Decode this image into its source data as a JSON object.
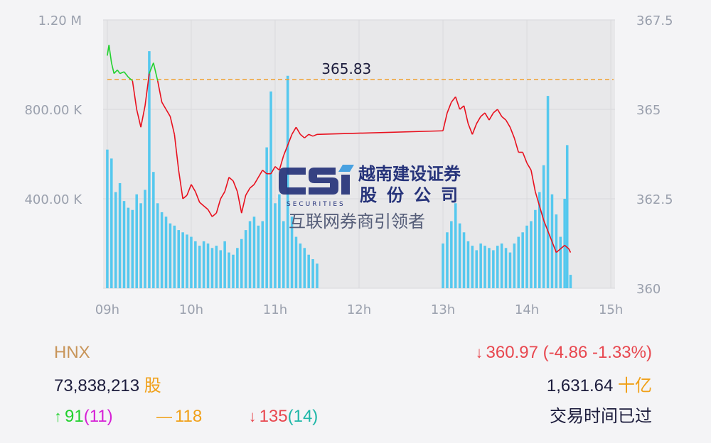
{
  "chart_data": {
    "type": "line",
    "reference_label": "365.83",
    "reference_value": 365.83,
    "y_left_ticks": [
      "1.20 M",
      "800.00 K",
      "400.00 K"
    ],
    "y_left_tick_values": [
      1200000,
      800000,
      400000
    ],
    "y_left_range": [
      0,
      1200000
    ],
    "y_right_ticks": [
      "367.5",
      "365",
      "362.5",
      "360"
    ],
    "y_right_tick_values": [
      367.5,
      365,
      362.5,
      360
    ],
    "y_right_range": [
      360,
      367.5
    ],
    "x_ticks": [
      "09h",
      "10h",
      "11h",
      "12h",
      "13h",
      "14h",
      "15h"
    ],
    "x_tick_values": [
      9,
      10,
      11,
      12,
      13,
      14,
      15
    ],
    "x_range": [
      8.95,
      15.05
    ],
    "grid": true,
    "colors": {
      "price_up": "#22d12e",
      "price_down": "#e8101e",
      "volume": "#55c8ee",
      "reference": "#f0a030"
    },
    "price_series": [
      {
        "x": 9.0,
        "y": 366.5
      },
      {
        "x": 9.02,
        "y": 366.8
      },
      {
        "x": 9.05,
        "y": 366.3
      },
      {
        "x": 9.08,
        "y": 366.0
      },
      {
        "x": 9.12,
        "y": 366.1
      },
      {
        "x": 9.15,
        "y": 366.0
      },
      {
        "x": 9.2,
        "y": 366.05
      },
      {
        "x": 9.25,
        "y": 365.9
      },
      {
        "x": 9.3,
        "y": 365.8
      },
      {
        "x": 9.35,
        "y": 365.0
      },
      {
        "x": 9.4,
        "y": 364.5
      },
      {
        "x": 9.45,
        "y": 365.1
      },
      {
        "x": 9.5,
        "y": 366.0
      },
      {
        "x": 9.55,
        "y": 366.3
      },
      {
        "x": 9.6,
        "y": 365.8
      },
      {
        "x": 9.65,
        "y": 365.2
      },
      {
        "x": 9.7,
        "y": 365.0
      },
      {
        "x": 9.75,
        "y": 364.8
      },
      {
        "x": 9.8,
        "y": 364.3
      },
      {
        "x": 9.85,
        "y": 363.3
      },
      {
        "x": 9.9,
        "y": 362.5
      },
      {
        "x": 9.95,
        "y": 362.6
      },
      {
        "x": 10.0,
        "y": 362.9
      },
      {
        "x": 10.05,
        "y": 362.7
      },
      {
        "x": 10.1,
        "y": 362.4
      },
      {
        "x": 10.15,
        "y": 362.3
      },
      {
        "x": 10.2,
        "y": 362.2
      },
      {
        "x": 10.25,
        "y": 362.0
      },
      {
        "x": 10.3,
        "y": 362.1
      },
      {
        "x": 10.35,
        "y": 362.5
      },
      {
        "x": 10.4,
        "y": 362.7
      },
      {
        "x": 10.45,
        "y": 363.1
      },
      {
        "x": 10.5,
        "y": 363.0
      },
      {
        "x": 10.55,
        "y": 362.7
      },
      {
        "x": 10.6,
        "y": 362.1
      },
      {
        "x": 10.65,
        "y": 362.6
      },
      {
        "x": 10.7,
        "y": 362.8
      },
      {
        "x": 10.75,
        "y": 362.9
      },
      {
        "x": 10.8,
        "y": 363.1
      },
      {
        "x": 10.85,
        "y": 363.3
      },
      {
        "x": 10.9,
        "y": 363.2
      },
      {
        "x": 10.95,
        "y": 363.2
      },
      {
        "x": 11.0,
        "y": 363.4
      },
      {
        "x": 11.05,
        "y": 363.3
      },
      {
        "x": 11.1,
        "y": 363.7
      },
      {
        "x": 11.15,
        "y": 364.0
      },
      {
        "x": 11.2,
        "y": 364.3
      },
      {
        "x": 11.25,
        "y": 364.5
      },
      {
        "x": 11.3,
        "y": 364.3
      },
      {
        "x": 11.35,
        "y": 364.2
      },
      {
        "x": 11.4,
        "y": 364.3
      },
      {
        "x": 11.45,
        "y": 364.25
      },
      {
        "x": 11.5,
        "y": 364.3
      },
      {
        "x": 13.0,
        "y": 364.4
      },
      {
        "x": 13.05,
        "y": 364.9
      },
      {
        "x": 13.1,
        "y": 365.2
      },
      {
        "x": 13.15,
        "y": 365.35
      },
      {
        "x": 13.2,
        "y": 365.0
      },
      {
        "x": 13.25,
        "y": 365.1
      },
      {
        "x": 13.3,
        "y": 364.6
      },
      {
        "x": 13.35,
        "y": 364.3
      },
      {
        "x": 13.4,
        "y": 364.6
      },
      {
        "x": 13.45,
        "y": 364.8
      },
      {
        "x": 13.5,
        "y": 364.9
      },
      {
        "x": 13.55,
        "y": 364.7
      },
      {
        "x": 13.6,
        "y": 364.9
      },
      {
        "x": 13.65,
        "y": 365.0
      },
      {
        "x": 13.7,
        "y": 364.8
      },
      {
        "x": 13.75,
        "y": 364.7
      },
      {
        "x": 13.8,
        "y": 364.5
      },
      {
        "x": 13.85,
        "y": 364.2
      },
      {
        "x": 13.9,
        "y": 363.8
      },
      {
        "x": 13.95,
        "y": 363.8
      },
      {
        "x": 14.0,
        "y": 363.5
      },
      {
        "x": 14.05,
        "y": 363.3
      },
      {
        "x": 14.1,
        "y": 362.7
      },
      {
        "x": 14.15,
        "y": 362.3
      },
      {
        "x": 14.2,
        "y": 361.9
      },
      {
        "x": 14.25,
        "y": 361.6
      },
      {
        "x": 14.3,
        "y": 361.3
      },
      {
        "x": 14.35,
        "y": 361.0
      },
      {
        "x": 14.4,
        "y": 361.1
      },
      {
        "x": 14.45,
        "y": 361.2
      },
      {
        "x": 14.5,
        "y": 361.1
      },
      {
        "x": 14.52,
        "y": 361.0
      }
    ],
    "volume_series": [
      {
        "x": 9.0,
        "y": 620000
      },
      {
        "x": 9.05,
        "y": 580000
      },
      {
        "x": 9.1,
        "y": 430000
      },
      {
        "x": 9.15,
        "y": 470000
      },
      {
        "x": 9.2,
        "y": 390000
      },
      {
        "x": 9.25,
        "y": 360000
      },
      {
        "x": 9.3,
        "y": 350000
      },
      {
        "x": 9.35,
        "y": 420000
      },
      {
        "x": 9.4,
        "y": 380000
      },
      {
        "x": 9.45,
        "y": 440000
      },
      {
        "x": 9.5,
        "y": 1060000
      },
      {
        "x": 9.55,
        "y": 520000
      },
      {
        "x": 9.6,
        "y": 380000
      },
      {
        "x": 9.65,
        "y": 340000
      },
      {
        "x": 9.7,
        "y": 320000
      },
      {
        "x": 9.75,
        "y": 290000
      },
      {
        "x": 9.8,
        "y": 280000
      },
      {
        "x": 9.85,
        "y": 260000
      },
      {
        "x": 9.9,
        "y": 250000
      },
      {
        "x": 9.95,
        "y": 240000
      },
      {
        "x": 10.0,
        "y": 230000
      },
      {
        "x": 10.05,
        "y": 210000
      },
      {
        "x": 10.1,
        "y": 190000
      },
      {
        "x": 10.15,
        "y": 210000
      },
      {
        "x": 10.2,
        "y": 200000
      },
      {
        "x": 10.25,
        "y": 180000
      },
      {
        "x": 10.3,
        "y": 190000
      },
      {
        "x": 10.35,
        "y": 170000
      },
      {
        "x": 10.4,
        "y": 210000
      },
      {
        "x": 10.45,
        "y": 160000
      },
      {
        "x": 10.5,
        "y": 150000
      },
      {
        "x": 10.55,
        "y": 180000
      },
      {
        "x": 10.6,
        "y": 220000
      },
      {
        "x": 10.65,
        "y": 260000
      },
      {
        "x": 10.7,
        "y": 300000
      },
      {
        "x": 10.75,
        "y": 320000
      },
      {
        "x": 10.8,
        "y": 280000
      },
      {
        "x": 10.85,
        "y": 300000
      },
      {
        "x": 10.9,
        "y": 630000
      },
      {
        "x": 10.95,
        "y": 880000
      },
      {
        "x": 11.0,
        "y": 380000
      },
      {
        "x": 11.05,
        "y": 420000
      },
      {
        "x": 11.1,
        "y": 300000
      },
      {
        "x": 11.15,
        "y": 950000
      },
      {
        "x": 11.2,
        "y": 320000
      },
      {
        "x": 11.25,
        "y": 230000
      },
      {
        "x": 11.3,
        "y": 200000
      },
      {
        "x": 11.35,
        "y": 180000
      },
      {
        "x": 11.4,
        "y": 150000
      },
      {
        "x": 11.45,
        "y": 130000
      },
      {
        "x": 11.5,
        "y": 110000
      },
      {
        "x": 13.0,
        "y": 200000
      },
      {
        "x": 13.05,
        "y": 250000
      },
      {
        "x": 13.1,
        "y": 300000
      },
      {
        "x": 13.15,
        "y": 380000
      },
      {
        "x": 13.2,
        "y": 290000
      },
      {
        "x": 13.25,
        "y": 250000
      },
      {
        "x": 13.3,
        "y": 210000
      },
      {
        "x": 13.35,
        "y": 190000
      },
      {
        "x": 13.4,
        "y": 170000
      },
      {
        "x": 13.45,
        "y": 200000
      },
      {
        "x": 13.5,
        "y": 190000
      },
      {
        "x": 13.55,
        "y": 180000
      },
      {
        "x": 13.6,
        "y": 170000
      },
      {
        "x": 13.65,
        "y": 190000
      },
      {
        "x": 13.7,
        "y": 200000
      },
      {
        "x": 13.75,
        "y": 180000
      },
      {
        "x": 13.8,
        "y": 160000
      },
      {
        "x": 13.85,
        "y": 200000
      },
      {
        "x": 13.9,
        "y": 230000
      },
      {
        "x": 13.95,
        "y": 250000
      },
      {
        "x": 14.0,
        "y": 280000
      },
      {
        "x": 14.05,
        "y": 300000
      },
      {
        "x": 14.1,
        "y": 350000
      },
      {
        "x": 14.15,
        "y": 430000
      },
      {
        "x": 14.2,
        "y": 550000
      },
      {
        "x": 14.25,
        "y": 860000
      },
      {
        "x": 14.3,
        "y": 420000
      },
      {
        "x": 14.35,
        "y": 330000
      },
      {
        "x": 14.4,
        "y": 230000
      },
      {
        "x": 14.45,
        "y": 400000
      },
      {
        "x": 14.48,
        "y": 640000
      },
      {
        "x": 14.52,
        "y": 60000
      }
    ]
  },
  "logo": {
    "cn_line1": "越南建设证券",
    "cn_line2": "股份公司",
    "en": "SECURITIES",
    "slogan": "互联网券商引领者"
  },
  "info": {
    "index_name": "HNX",
    "volume_value": "73,838,213",
    "volume_unit": "股",
    "price_arrow": "↓",
    "price_text": "360.97 (-4.86 -1.33%)",
    "turnover_value": "1,631.64",
    "turnover_unit": "十亿",
    "up_arrow": "↑",
    "up_count": "91",
    "up_ceiling": "(11)",
    "flat_symbol": "—",
    "flat_count": "118",
    "down_arrow": "↓",
    "down_count": "135",
    "down_floor": "(14)",
    "status": "交易时间已过",
    "colors": {
      "label": "#c8955a",
      "text": "#1c1c3c",
      "orange": "#f0a018",
      "red": "#e8474f",
      "green": "#22d12e",
      "magenta": "#d620d6",
      "teal": "#1fb7a8"
    }
  }
}
